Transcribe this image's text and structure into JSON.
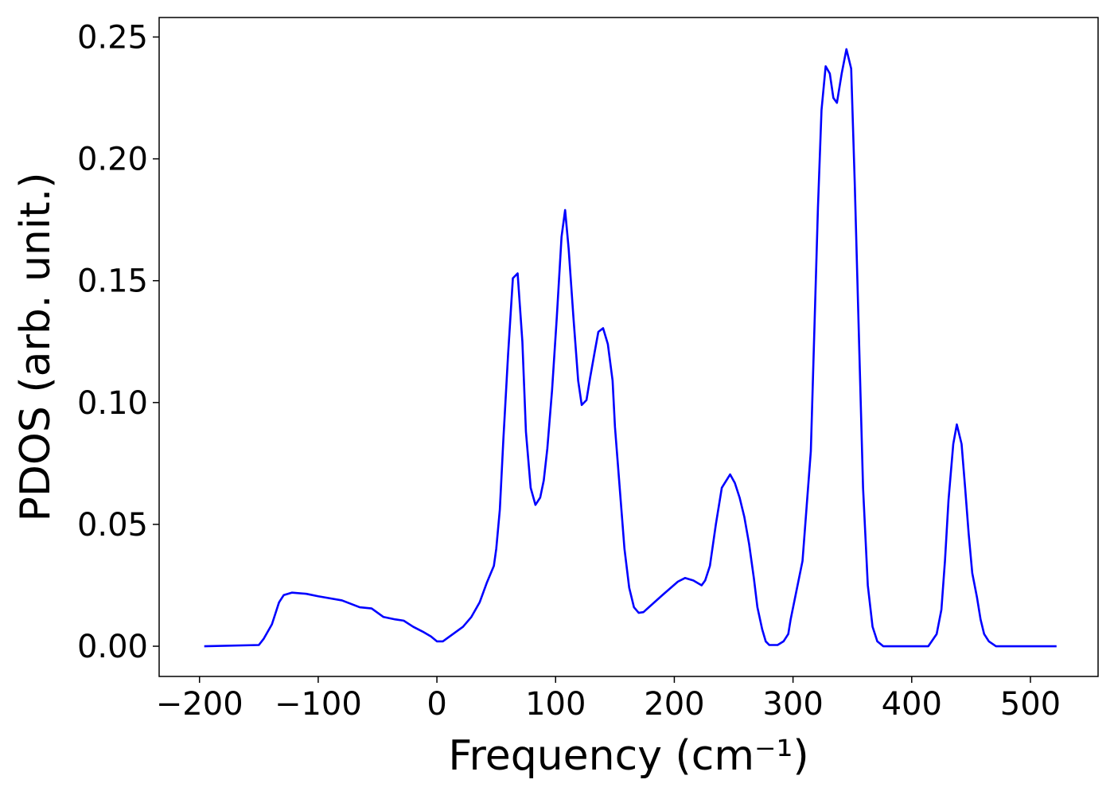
{
  "chart_data": {
    "type": "line",
    "xlabel": "Frequency (cm⁻¹)",
    "ylabel": "PDOS (arb. unit.)",
    "xlim": [
      -234,
      557
    ],
    "ylim": [
      -0.0124,
      0.258
    ],
    "xticks": [
      {
        "value": -200,
        "label": "−200"
      },
      {
        "value": -100,
        "label": "−100"
      },
      0,
      100,
      200,
      300,
      400,
      500
    ],
    "yticks": [
      {
        "value": 0,
        "label": "0.00"
      },
      {
        "value": 0.05,
        "label": "0.05"
      },
      {
        "value": 0.1,
        "label": "0.10"
      },
      {
        "value": 0.15,
        "label": "0.15"
      },
      {
        "value": 0.2,
        "label": "0.20"
      },
      {
        "value": 0.25,
        "label": "0.25"
      }
    ],
    "x": [
      -196,
      -150,
      -146,
      -139,
      -133,
      -129,
      -122,
      -110,
      -100,
      -80,
      -65,
      -55,
      -45,
      -35,
      -28,
      -20,
      -12,
      -5,
      0,
      5,
      22,
      29,
      36,
      42,
      48,
      50,
      53,
      56,
      60,
      64,
      68,
      72,
      75,
      79,
      83,
      87,
      90,
      93,
      97,
      101,
      105,
      108,
      111,
      115,
      119,
      122,
      126,
      129,
      133,
      136,
      140,
      144,
      148,
      150,
      154,
      158,
      162,
      166,
      170,
      174,
      190,
      203,
      209,
      216,
      223,
      226,
      230,
      235,
      240,
      247,
      251,
      255,
      259,
      263,
      267,
      270,
      274,
      277,
      280,
      287,
      292,
      296,
      298,
      308,
      315,
      321,
      324,
      327.5,
      331,
      334,
      337,
      341,
      345,
      349,
      352,
      359,
      363,
      367,
      371,
      376,
      414,
      421,
      425,
      428,
      431,
      435,
      438,
      442,
      445,
      448,
      451,
      455,
      458,
      461,
      465,
      471,
      522
    ],
    "series": [
      {
        "name": "PDOS",
        "color": "#0000ff",
        "values": [
          0,
          0.0005,
          0.003,
          0.009,
          0.018,
          0.021,
          0.022,
          0.0215,
          0.0205,
          0.0188,
          0.016,
          0.0155,
          0.012,
          0.011,
          0.0105,
          0.008,
          0.006,
          0.004,
          0.002,
          0.002,
          0.008,
          0.012,
          0.018,
          0.026,
          0.033,
          0.04,
          0.056,
          0.085,
          0.12,
          0.151,
          0.153,
          0.125,
          0.088,
          0.065,
          0.058,
          0.061,
          0.068,
          0.081,
          0.105,
          0.135,
          0.168,
          0.179,
          0.163,
          0.135,
          0.109,
          0.099,
          0.101,
          0.11,
          0.121,
          0.129,
          0.1305,
          0.124,
          0.109,
          0.09,
          0.065,
          0.04,
          0.024,
          0.016,
          0.0137,
          0.014,
          0.021,
          0.0265,
          0.028,
          0.027,
          0.025,
          0.027,
          0.033,
          0.05,
          0.065,
          0.0705,
          0.067,
          0.061,
          0.053,
          0.042,
          0.028,
          0.016,
          0.007,
          0.002,
          0.0005,
          0.0005,
          0.002,
          0.005,
          0.011,
          0.035,
          0.08,
          0.18,
          0.22,
          0.238,
          0.235,
          0.225,
          0.223,
          0.235,
          0.245,
          0.237,
          0.19,
          0.065,
          0.025,
          0.008,
          0.002,
          0,
          0,
          0.005,
          0.015,
          0.035,
          0.06,
          0.083,
          0.091,
          0.083,
          0.065,
          0.046,
          0.03,
          0.02,
          0.011,
          0.005,
          0.002,
          0,
          0
        ]
      }
    ]
  }
}
